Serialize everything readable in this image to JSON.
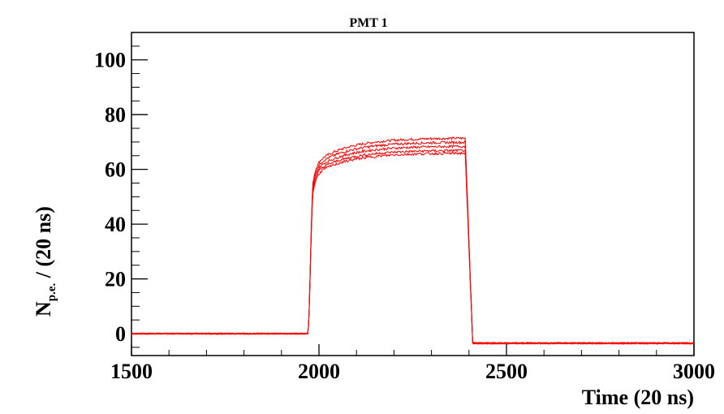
{
  "chart_data": {
    "type": "line",
    "title": "PMT 1",
    "xlabel": "Time (20 ns)",
    "ylabel_main": "N",
    "ylabel_sub": "p.e.",
    "ylabel_rest": " / (20 ns)",
    "xlim": [
      1500,
      3000
    ],
    "ylim": [
      -8,
      110
    ],
    "x_ticks": [
      1500,
      2000,
      2500,
      3000
    ],
    "y_ticks": [
      0,
      20,
      40,
      60,
      80,
      100
    ],
    "x_tick_labels": [
      "1500",
      "2000",
      "2500",
      "3000"
    ],
    "y_tick_labels": [
      "0",
      "20",
      "40",
      "60",
      "80",
      "100"
    ],
    "grid": false,
    "legend": "none",
    "line_color": "#ff0000",
    "series": [
      {
        "plateau_start": 62,
        "plateau_end": 71.5
      },
      {
        "plateau_start": 61,
        "plateau_end": 70
      },
      {
        "plateau_start": 60,
        "plateau_end": 68.5
      },
      {
        "plateau_start": 59,
        "plateau_end": 67
      },
      {
        "plateau_start": 58,
        "plateau_end": 66
      }
    ],
    "pulse": {
      "baseline": 0,
      "rise_x": [
        1970,
        1985
      ],
      "fall_x": [
        2390,
        2410
      ],
      "post_level": -3.5
    }
  }
}
